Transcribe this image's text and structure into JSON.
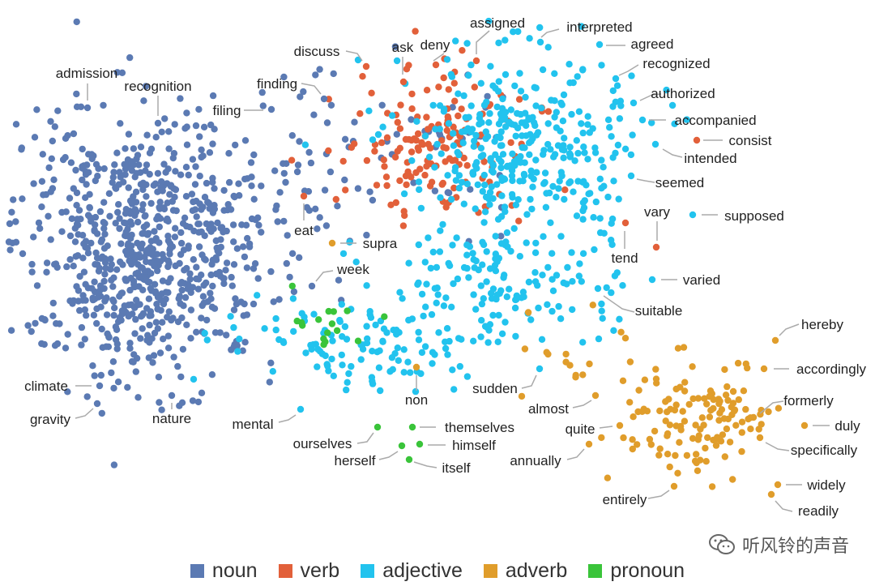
{
  "chart_data": {
    "type": "scatter",
    "title": "",
    "xlabel": "",
    "ylabel": "",
    "legend_position": "bottom-center",
    "grid": false,
    "categories": [
      {
        "key": "noun",
        "name": "noun",
        "color": "#5b7ab3"
      },
      {
        "key": "verb",
        "name": "verb",
        "color": "#e2603a"
      },
      {
        "key": "adjective",
        "name": "adjective",
        "color": "#22c3ee"
      },
      {
        "key": "adverb",
        "name": "adverb",
        "color": "#e09d2b"
      },
      {
        "key": "pronoun",
        "name": "pronoun",
        "color": "#3ac43a"
      }
    ],
    "labeled_points": [
      {
        "word": "admission",
        "category": "noun"
      },
      {
        "word": "recognition",
        "category": "noun"
      },
      {
        "word": "filing",
        "category": "noun"
      },
      {
        "word": "finding",
        "category": "noun"
      },
      {
        "word": "discuss",
        "category": "verb"
      },
      {
        "word": "ask",
        "category": "verb"
      },
      {
        "word": "deny",
        "category": "verb"
      },
      {
        "word": "assigned",
        "category": "verb"
      },
      {
        "word": "interpreted",
        "category": "adjective"
      },
      {
        "word": "agreed",
        "category": "adjective"
      },
      {
        "word": "recognized",
        "category": "adjective"
      },
      {
        "word": "authorized",
        "category": "adjective"
      },
      {
        "word": "accompanied",
        "category": "adjective"
      },
      {
        "word": "consist",
        "category": "verb"
      },
      {
        "word": "intended",
        "category": "adjective"
      },
      {
        "word": "seemed",
        "category": "adjective"
      },
      {
        "word": "vary",
        "category": "verb"
      },
      {
        "word": "supposed",
        "category": "adjective"
      },
      {
        "word": "tend",
        "category": "verb"
      },
      {
        "word": "varied",
        "category": "adjective"
      },
      {
        "word": "eat",
        "category": "verb"
      },
      {
        "word": "supra",
        "category": "adverb"
      },
      {
        "word": "week",
        "category": "noun"
      },
      {
        "word": "suitable",
        "category": "adjective"
      },
      {
        "word": "hereby",
        "category": "adverb"
      },
      {
        "word": "accordingly",
        "category": "adverb"
      },
      {
        "word": "formerly",
        "category": "adverb"
      },
      {
        "word": "duly",
        "category": "adverb"
      },
      {
        "word": "specifically",
        "category": "adverb"
      },
      {
        "word": "widely",
        "category": "adverb"
      },
      {
        "word": "readily",
        "category": "adverb"
      },
      {
        "word": "entirely",
        "category": "adverb"
      },
      {
        "word": "annually",
        "category": "adverb"
      },
      {
        "word": "quite",
        "category": "adverb"
      },
      {
        "word": "almost",
        "category": "adverb"
      },
      {
        "word": "sudden",
        "category": "adjective"
      },
      {
        "word": "non",
        "category": "adverb"
      },
      {
        "word": "mental",
        "category": "adjective"
      },
      {
        "word": "ourselves",
        "category": "pronoun"
      },
      {
        "word": "themselves",
        "category": "pronoun"
      },
      {
        "word": "himself",
        "category": "pronoun"
      },
      {
        "word": "herself",
        "category": "pronoun"
      },
      {
        "word": "itself",
        "category": "pronoun"
      },
      {
        "word": "climate",
        "category": "noun"
      },
      {
        "word": "gravity",
        "category": "noun"
      },
      {
        "word": "nature",
        "category": "noun"
      }
    ]
  },
  "watermark": {
    "text": "听风铃的声音",
    "icon": "wechat-icon"
  }
}
